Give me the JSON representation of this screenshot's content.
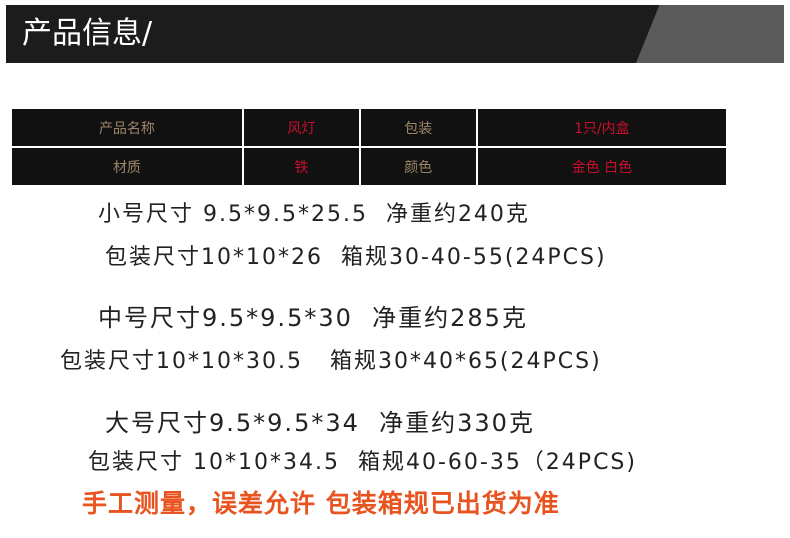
{
  "header": {
    "title": "产品信息/"
  },
  "table": {
    "rows": [
      [
        "产品名称",
        "风灯",
        "包装",
        "1只/内盒"
      ],
      [
        "材质",
        "铁",
        "颜色",
        "金色  白色"
      ]
    ]
  },
  "specs": [
    "小号尺寸 9.5*9.5*25.5  净重约240克",
    "包装尺寸10*10*26  箱规30-40-55(24PCS)",
    "中号尺寸9.5*9.5*30  净重约285克",
    "包装尺寸10*10*30.5   箱规30*40*65(24PCS)",
    "大号尺寸9.5*9.5*34  净重约330克",
    "包装尺寸 10*10*34.5  箱规40-60-35（24PCS)"
  ],
  "note": "手工测量，误差允许 包装箱规已出货为准"
}
